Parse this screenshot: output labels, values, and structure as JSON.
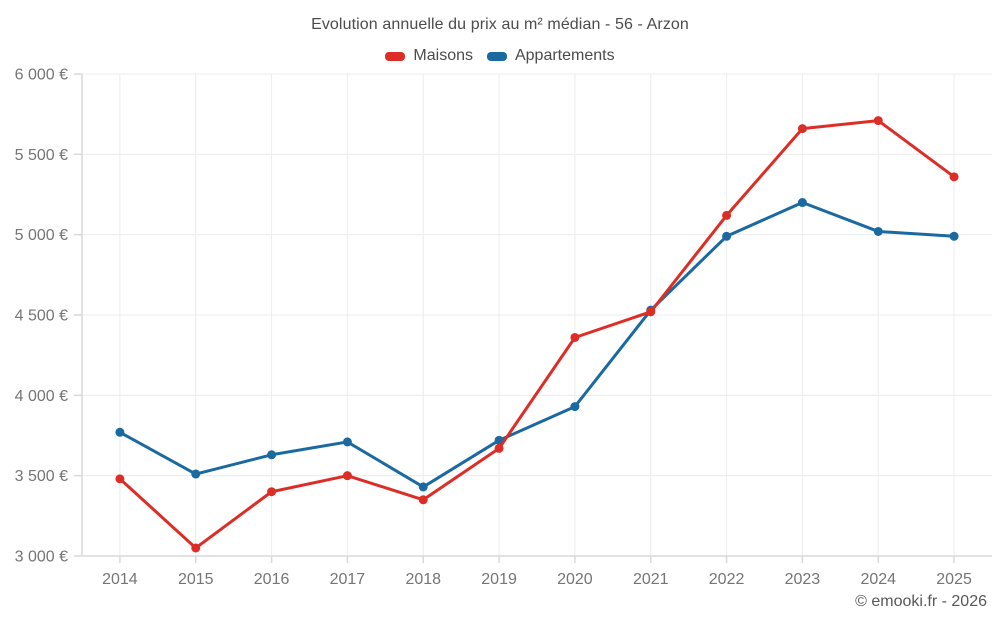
{
  "title": "Evolution annuelle du prix au m² médian - 56 - Arzon",
  "legend": [
    {
      "label": "Maisons",
      "color": "#dc2e27"
    },
    {
      "label": "Appartements",
      "color": "#1a69a0"
    }
  ],
  "footer": {
    "copyright": "© emooki.fr - 2026"
  },
  "colors": {
    "maisons": "#dc2e27",
    "appartements": "#1a69a0",
    "gridline": "#ececec",
    "axis": "#d9d9d9",
    "tick_label": "#757575",
    "title_text": "#4c4c4c"
  },
  "chart_data": {
    "type": "line",
    "title": "Evolution annuelle du prix au m² médian - 56 - Arzon",
    "x": [
      "2014",
      "2015",
      "2016",
      "2017",
      "2018",
      "2019",
      "2020",
      "2021",
      "2022",
      "2023",
      "2024",
      "2025"
    ],
    "series": [
      {
        "name": "Maisons",
        "color": "#dc2e27",
        "values": [
          3480,
          3050,
          3400,
          3500,
          3350,
          3670,
          4360,
          4520,
          5120,
          5660,
          5710,
          5360
        ]
      },
      {
        "name": "Appartements",
        "color": "#1a69a0",
        "values": [
          3770,
          3510,
          3630,
          3710,
          3430,
          3720,
          3930,
          4530,
          4990,
          5200,
          5020,
          4990
        ]
      }
    ],
    "xlabel": "",
    "ylabel": "",
    "y_unit": "€",
    "ylim": [
      3000,
      6000
    ],
    "ytick_step": 500,
    "grid": true,
    "legend_position": "top",
    "marker": "circle"
  }
}
